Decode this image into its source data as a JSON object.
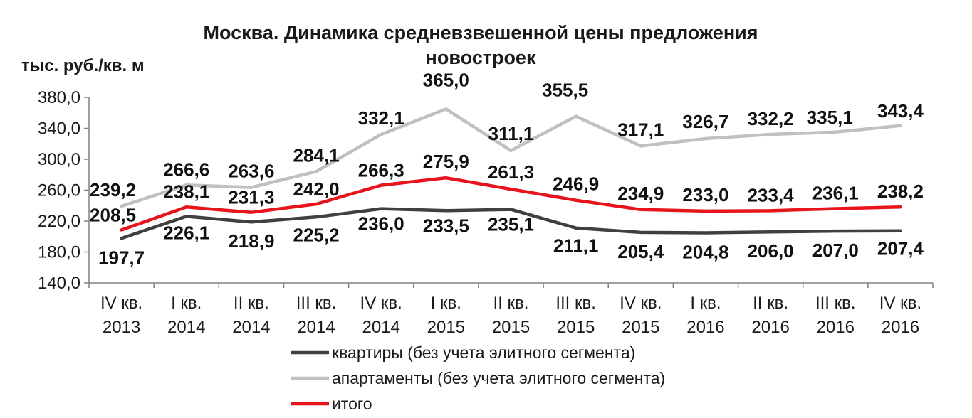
{
  "chart_data": {
    "type": "line",
    "title_line1": "Москва. Динамика средневзвешенной цены предложения",
    "title_line2": "новостроек",
    "ylabel": "тыс. руб./кв. м",
    "ylim": [
      140,
      380
    ],
    "yticks": [
      "140,0",
      "180,0",
      "220,0",
      "260,0",
      "300,0",
      "340,0",
      "380,0"
    ],
    "ytick_values": [
      140,
      180,
      220,
      260,
      300,
      340,
      380
    ],
    "categories": [
      [
        "IV кв.",
        "2013"
      ],
      [
        "I кв.",
        "2014"
      ],
      [
        "II кв.",
        "2014"
      ],
      [
        "III кв.",
        "2014"
      ],
      [
        "IV кв.",
        "2014"
      ],
      [
        "I кв.",
        "2015"
      ],
      [
        "II кв.",
        "2015"
      ],
      [
        "III кв.",
        "2015"
      ],
      [
        "IV кв.",
        "2015"
      ],
      [
        "I кв.",
        "2016"
      ],
      [
        "II кв.",
        "2016"
      ],
      [
        "III кв.",
        "2016"
      ],
      [
        "IV кв.",
        "2016"
      ]
    ],
    "grid": false,
    "legend_position": "bottom",
    "series": [
      {
        "name": "квартиры (без учета элитного сегмента)",
        "color": "#404040",
        "values": [
          197.7,
          226.1,
          218.9,
          225.2,
          236.0,
          233.5,
          235.1,
          211.1,
          205.4,
          204.8,
          206.0,
          207.0,
          207.4
        ],
        "labels": [
          "197,7",
          "226,1",
          "218,9",
          "225,2",
          "236,0",
          "233,5",
          "235,1",
          "211,1",
          "205,4",
          "204,8",
          "206,0",
          "207,0",
          "207,4"
        ]
      },
      {
        "name": "апартаменты (без учета элитного сегмента)",
        "color": "#c0c0c0",
        "values": [
          239.2,
          266.6,
          263.6,
          284.1,
          332.1,
          365.0,
          311.1,
          355.5,
          317.1,
          326.7,
          332.2,
          335.1,
          343.4
        ],
        "labels": [
          "239,2",
          "266,6",
          "263,6",
          "284,1",
          "332,1",
          "365,0",
          "311,1",
          "355,5",
          "317,1",
          "326,7",
          "332,2",
          "335,1",
          "343,4"
        ]
      },
      {
        "name": "итого",
        "color": "#e8141c",
        "values": [
          208.5,
          238.1,
          231.3,
          242.0,
          266.3,
          275.9,
          261.3,
          246.9,
          234.9,
          233.0,
          233.4,
          236.1,
          238.2
        ],
        "labels": [
          "208,5",
          "238,1",
          "231,3",
          "242,0",
          "266,3",
          "275,9",
          "261,3",
          "246,9",
          "234,9",
          "233,0",
          "233,4",
          "236,1",
          "238,2"
        ]
      }
    ]
  }
}
